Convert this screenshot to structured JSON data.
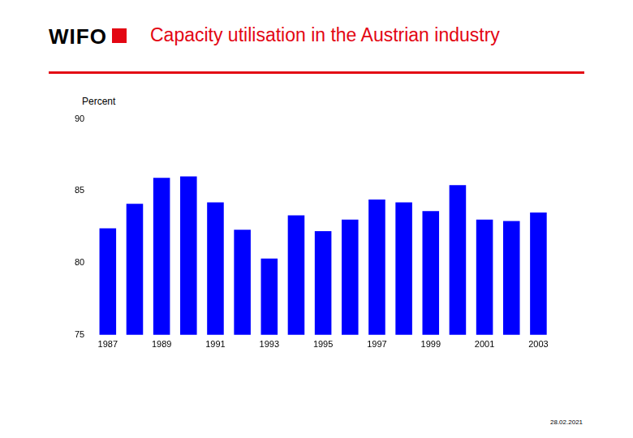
{
  "header": {
    "logo": "WIFO"
  },
  "footer": {
    "date": "28.02.2021"
  },
  "chart_data": {
    "type": "bar",
    "title": "Capacity utilisation in the Austrian industry",
    "y_label": "Percent",
    "categories": [
      "1987",
      null,
      "1989",
      null,
      "1991",
      null,
      "1993",
      null,
      "1995",
      null,
      "1997",
      null,
      "1999",
      null,
      "2001",
      null,
      "2003"
    ],
    "values": [
      82.4,
      84.1,
      85.9,
      86.0,
      84.2,
      82.3,
      80.3,
      83.3,
      82.2,
      83.0,
      84.4,
      84.2,
      83.6,
      85.4,
      83.0,
      82.9,
      83.5
    ],
    "color": "#0000ff",
    "ylim": [
      75,
      90
    ],
    "yticks": [
      75,
      80,
      85,
      90
    ],
    "grid": false,
    "legend": false
  }
}
